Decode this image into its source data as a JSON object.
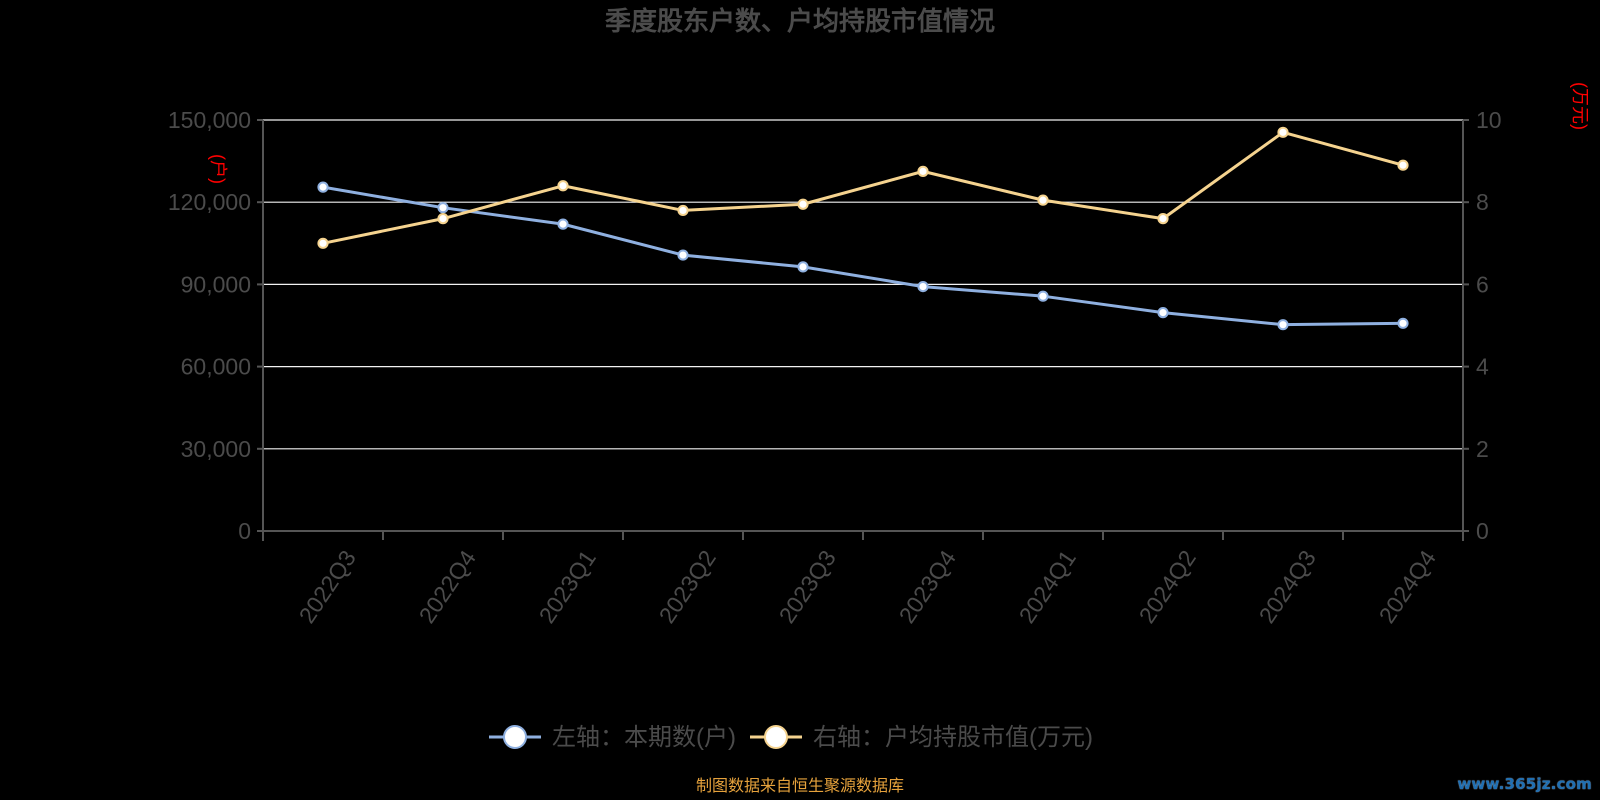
{
  "page": {
    "background": "#000000"
  },
  "chart_data": {
    "type": "line",
    "title": "季度股东户数、户均持股市值情况",
    "categories": [
      "2022Q3",
      "2022Q4",
      "2023Q1",
      "2023Q2",
      "2023Q3",
      "2023Q4",
      "2024Q1",
      "2024Q2",
      "2024Q3",
      "2024Q4"
    ],
    "y_left": {
      "unit_label": "(户)",
      "ticks": [
        "0",
        "30,000",
        "60,000",
        "90,000",
        "120,000",
        "150,000"
      ],
      "ylim": [
        0,
        150000
      ]
    },
    "y_right": {
      "unit_label": "(万元)",
      "ticks": [
        "0",
        "2",
        "4",
        "6",
        "8",
        "10"
      ],
      "ylim": [
        0,
        10
      ]
    },
    "series": [
      {
        "name": "左轴：本期数(户)",
        "axis": "left",
        "color": "#8fb0e0",
        "values": [
          125500,
          118000,
          112000,
          100700,
          96400,
          89200,
          85700,
          79700,
          75300,
          75800
        ]
      },
      {
        "name": "右轴：户均持股市值(万元)",
        "axis": "right",
        "color": "#f5d38f",
        "values": [
          7.0,
          7.6,
          8.4,
          7.8,
          7.95,
          8.75,
          8.05,
          7.6,
          9.7,
          8.9
        ]
      }
    ],
    "grid": true,
    "legend_position": "bottom-center"
  },
  "legend": {
    "items": [
      {
        "label": "左轴：本期数(户)",
        "color": "#8fb0e0"
      },
      {
        "label": "右轴：户均持股市值(万元)",
        "color": "#f5d38f"
      }
    ]
  },
  "footer": {
    "source_text": "制图数据来自恒生聚源数据库",
    "watermark_text": "www.365jz.com"
  },
  "colors": {
    "text": "#4b4b4b",
    "grid": "#ffffff",
    "axis": "#555555",
    "unit_red": "#ff0000",
    "source_orange": "#e6a23c"
  }
}
